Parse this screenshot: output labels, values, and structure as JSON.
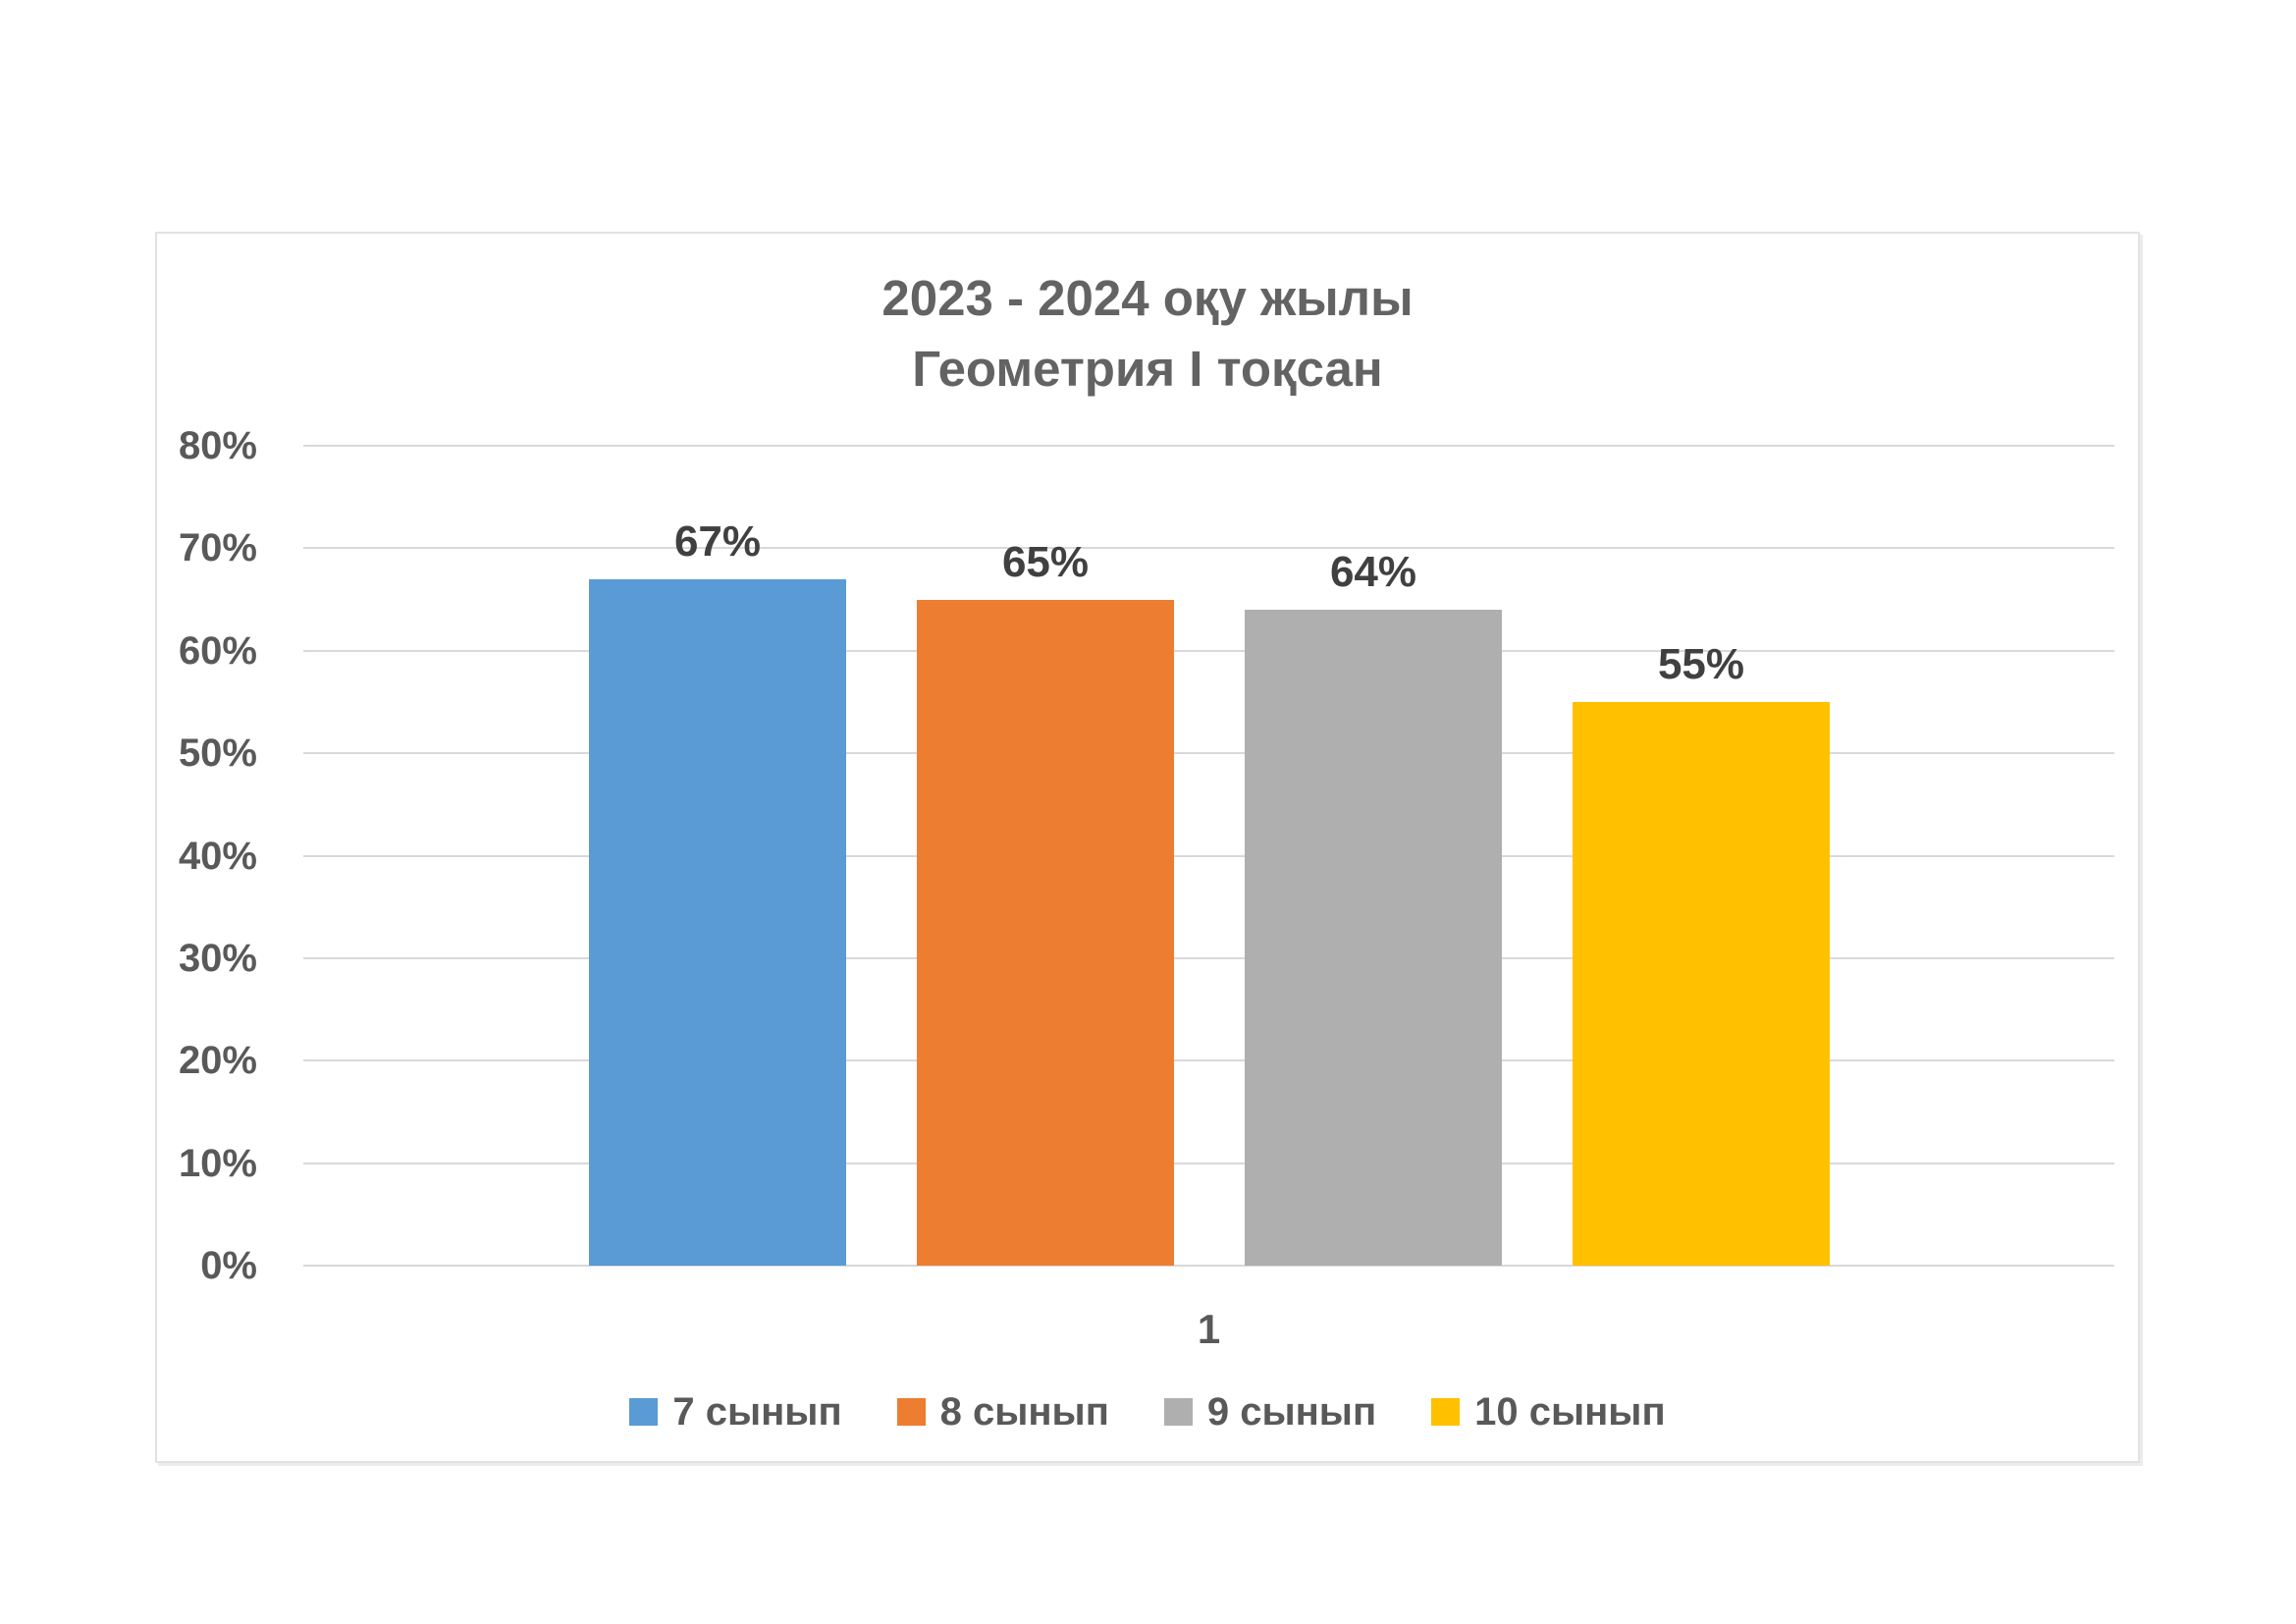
{
  "text": {
    "title_line1": "2023 - 2024 оқу жылы",
    "title_line2": "Геометрия I тоқсан"
  },
  "colors": {
    "blue": "#5B9BD5",
    "orange": "#ED7D31",
    "gray": "#AFAFAF",
    "yellow": "#FFC000",
    "gridline": "#D9D9D9",
    "card_border": "#E2E2E2",
    "title_text": "#636363",
    "tick_text": "#595959",
    "data_label_text": "#404040"
  },
  "chart_data": {
    "type": "bar",
    "title": "2023 - 2024 оқу жылы Геометрия I тоқсан",
    "categories": [
      "1"
    ],
    "series": [
      {
        "name": "7 сынып",
        "values": [
          67
        ],
        "color": "#5B9BD5"
      },
      {
        "name": "8 сынып",
        "values": [
          65
        ],
        "color": "#ED7D31"
      },
      {
        "name": "9 сынып",
        "values": [
          64
        ],
        "color": "#AFAFAF"
      },
      {
        "name": "10 сынып",
        "values": [
          55
        ],
        "color": "#FFC000"
      }
    ],
    "data_labels": [
      "67%",
      "65%",
      "64%",
      "55%"
    ],
    "ylim": [
      0,
      80
    ],
    "y_tick_step": 10,
    "y_tick_labels": [
      "0%",
      "10%",
      "20%",
      "30%",
      "40%",
      "50%",
      "60%",
      "70%",
      "80%"
    ],
    "grid": true,
    "legend_position": "bottom",
    "xlabel": "",
    "ylabel": ""
  }
}
